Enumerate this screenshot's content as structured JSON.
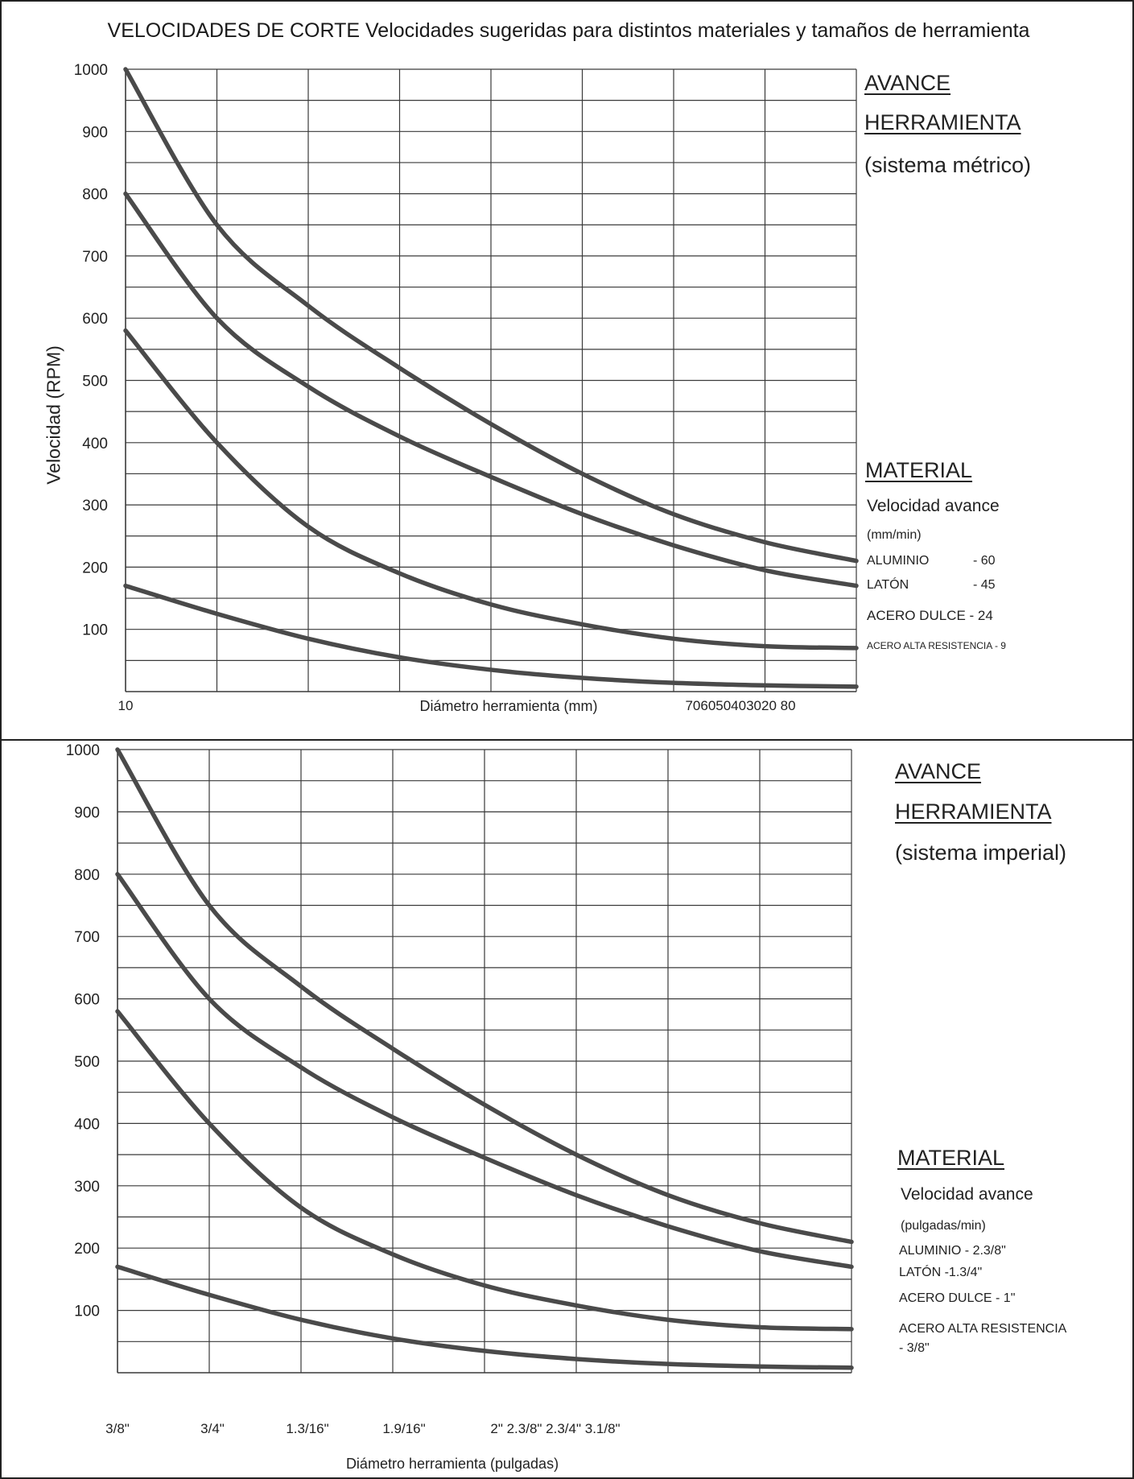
{
  "title": "VELOCIDADES DE CORTE Velocidades sugeridas para distintos materiales y tamaños de herramienta",
  "colors": {
    "line": "#4a4a4a",
    "grid": "#3a3a3a",
    "border": "#222222"
  },
  "metric_panel": {
    "heading_line1": "AVANCE",
    "heading_line2": "HERRAMIENTA",
    "system": "(sistema métrico)",
    "material_title": "MATERIAL",
    "feed_title": "Velocidad avance",
    "feed_unit": "(mm/min)",
    "feeds": [
      {
        "name": "ALUMINIO",
        "value": "- 60"
      },
      {
        "name": "LATÓN",
        "value": "- 45"
      },
      {
        "name": "ACERO DULCE",
        "value": "- 24"
      },
      {
        "name": "ACERO ALTA RESISTENCIA",
        "value": "- 9"
      }
    ]
  },
  "imperial_panel": {
    "heading_line1": "AVANCE",
    "heading_line2": "HERRAMIENTA",
    "system": "(sistema imperial)",
    "material_title": "MATERIAL",
    "feed_title": "Velocidad avance",
    "feed_unit": "(pulgadas/min)",
    "feeds": [
      {
        "label": "ALUMINIO - 2.3/8\""
      },
      {
        "label": "LATÓN -1.3/4\""
      },
      {
        "label": "ACERO DULCE  - 1\""
      },
      {
        "label": "ACERO ALTA RESISTENCIA"
      },
      {
        "label": "- 3/8\""
      }
    ]
  },
  "chart_data": [
    {
      "type": "line",
      "title": "",
      "xlabel": "Diámetro herramienta (mm)",
      "ylabel": "Velocidad (RPM)",
      "ylim": [
        0,
        1000
      ],
      "yticks": [
        100,
        200,
        300,
        400,
        500,
        600,
        700,
        800,
        900,
        1000
      ],
      "x_tick_labels": [
        "10",
        "706050403020 80"
      ],
      "grid": true,
      "x_grid_columns": 8,
      "series": [
        {
          "values": [
            1000,
            750,
            620,
            520,
            430,
            350,
            285,
            240,
            210
          ]
        },
        {
          "values": [
            800,
            600,
            490,
            410,
            345,
            285,
            235,
            195,
            170
          ]
        },
        {
          "values": [
            580,
            400,
            265,
            190,
            140,
            108,
            85,
            73,
            70
          ]
        },
        {
          "values": [
            170,
            125,
            85,
            55,
            35,
            22,
            14,
            10,
            8
          ]
        }
      ]
    },
    {
      "type": "line",
      "title": "",
      "xlabel": "Diámetro herramienta (pulgadas)",
      "ylabel": "",
      "ylim": [
        0,
        1000
      ],
      "yticks": [
        100,
        200,
        300,
        400,
        500,
        600,
        700,
        800,
        900,
        1000
      ],
      "x_tick_labels": [
        "3/8\"",
        "3/4\"",
        "1.3/16\"",
        "1.9/16\"",
        "2\" 2.3/8\" 2.3/4\" 3.1/8\""
      ],
      "grid": true,
      "x_grid_columns": 8,
      "series": [
        {
          "values": [
            1000,
            750,
            620,
            520,
            430,
            350,
            285,
            240,
            210
          ]
        },
        {
          "values": [
            800,
            600,
            490,
            410,
            345,
            285,
            235,
            195,
            170
          ]
        },
        {
          "values": [
            580,
            400,
            265,
            190,
            140,
            108,
            85,
            73,
            70
          ]
        },
        {
          "values": [
            170,
            125,
            85,
            55,
            35,
            22,
            14,
            10,
            8
          ]
        }
      ]
    }
  ]
}
